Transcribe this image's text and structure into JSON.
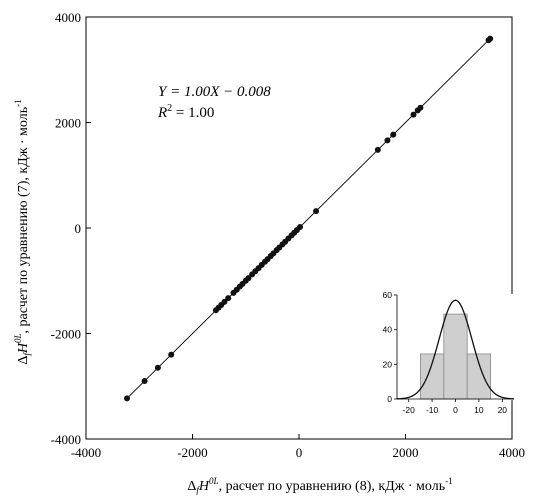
{
  "chart_data": [
    {
      "type": "scatter",
      "xlim": [
        -4000,
        4000
      ],
      "ylim": [
        -4000,
        4000
      ],
      "xticks": [
        -4000,
        -2000,
        0,
        2000,
        4000
      ],
      "yticks": [
        -4000,
        -2000,
        0,
        2000,
        4000
      ],
      "xticklabels": [
        "-4000",
        "-2000",
        "0",
        "2000",
        "4000"
      ],
      "yticklabels": [
        "-4000",
        "-2000",
        "0",
        "2000",
        "4000"
      ],
      "xlabel": {
        "delta": "Δ",
        "sub_f": "f",
        "h": "H",
        "sup": "0L",
        "text": ", расчет по уравнению (8), кДж · моль",
        "unit_sup": "-1"
      },
      "ylabel": {
        "delta": "Δ",
        "sub_f": "f",
        "h": "H",
        "sup": "0L",
        "text": ", расчет по уравнению (7), кДж · моль",
        "unit_sup": "-1"
      },
      "annotation": {
        "line1": "Y = 1.00X − 0.008",
        "line2_r": "R",
        "line2_sup": "2",
        "line2_val": " = 1.00"
      },
      "fit_line": {
        "slope": 1.0,
        "intercept": -0.008,
        "x": [
          -3250,
          3600
        ]
      },
      "points": [
        [
          -3230,
          -3230
        ],
        [
          -2900,
          -2900
        ],
        [
          -2650,
          -2650
        ],
        [
          -2400,
          -2400
        ],
        [
          -1560,
          -1560
        ],
        [
          -1510,
          -1510
        ],
        [
          -1460,
          -1460
        ],
        [
          -1400,
          -1400
        ],
        [
          -1330,
          -1330
        ],
        [
          -1230,
          -1230
        ],
        [
          -1170,
          -1170
        ],
        [
          -1110,
          -1110
        ],
        [
          -1060,
          -1060
        ],
        [
          -1000,
          -1000
        ],
        [
          -950,
          -950
        ],
        [
          -880,
          -880
        ],
        [
          -820,
          -820
        ],
        [
          -760,
          -760
        ],
        [
          -700,
          -700
        ],
        [
          -640,
          -640
        ],
        [
          -590,
          -590
        ],
        [
          -530,
          -530
        ],
        [
          -480,
          -480
        ],
        [
          -420,
          -420
        ],
        [
          -370,
          -370
        ],
        [
          -310,
          -310
        ],
        [
          -260,
          -260
        ],
        [
          -200,
          -200
        ],
        [
          -140,
          -140
        ],
        [
          -90,
          -90
        ],
        [
          -40,
          -40
        ],
        [
          20,
          20
        ],
        [
          320,
          320
        ],
        [
          1480,
          1480
        ],
        [
          1660,
          1660
        ],
        [
          1770,
          1770
        ],
        [
          2150,
          2150
        ],
        [
          2230,
          2230
        ],
        [
          2280,
          2280
        ],
        [
          3560,
          3560
        ],
        [
          3590,
          3590
        ]
      ]
    },
    {
      "type": "bar",
      "subtype": "histogram",
      "xlim": [
        -25,
        25
      ],
      "ylim": [
        0,
        60
      ],
      "xticks": [
        -20,
        -10,
        0,
        10,
        20
      ],
      "yticks": [
        0,
        20,
        40,
        60
      ],
      "xticklabels": [
        "-20",
        "-10",
        "0",
        "10",
        "20"
      ],
      "yticklabels": [
        "0",
        "20",
        "40",
        "60"
      ],
      "bins": [
        {
          "from": -15,
          "to": -5,
          "value": 26
        },
        {
          "from": -5,
          "to": 5,
          "value": 49
        },
        {
          "from": 5,
          "to": 15,
          "value": 26
        }
      ],
      "normal_curve": {
        "mean": 0,
        "sd": 7,
        "peak": 57
      }
    }
  ]
}
